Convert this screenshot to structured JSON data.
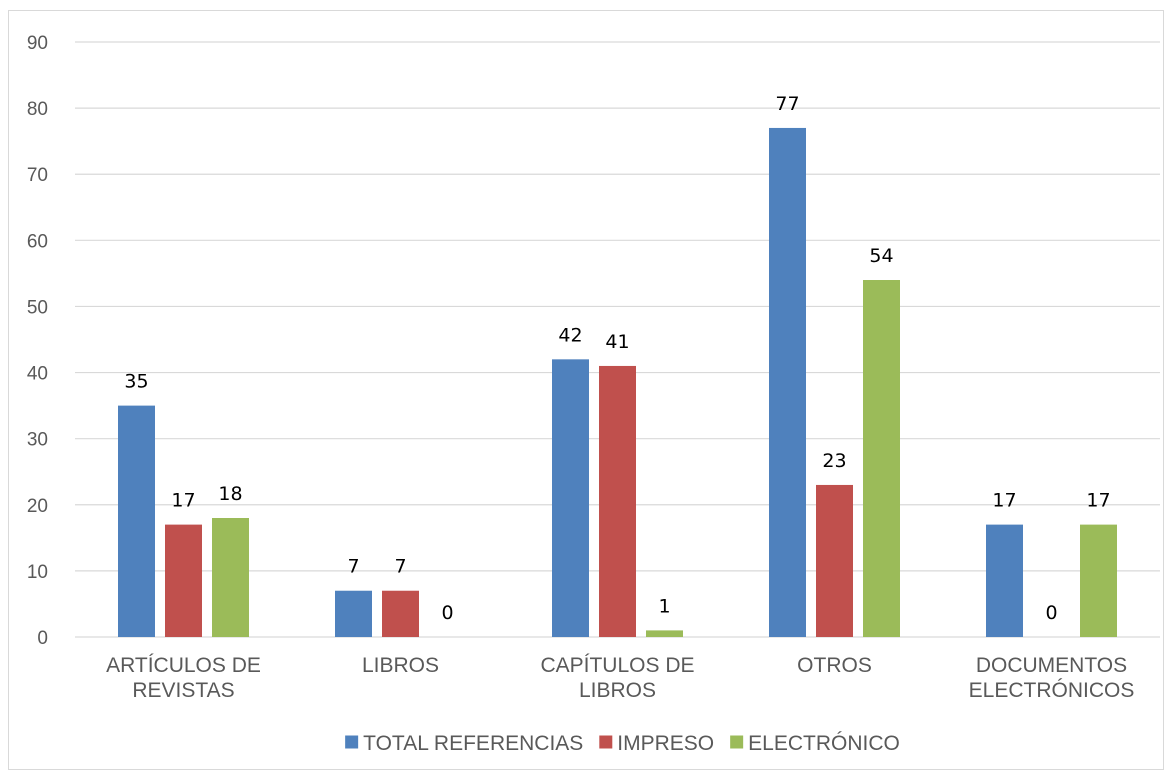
{
  "chart_data": {
    "type": "bar",
    "title": "",
    "xlabel": "",
    "ylabel": "",
    "ylim": [
      0,
      90
    ],
    "yticks": [
      0,
      10,
      20,
      30,
      40,
      50,
      60,
      70,
      80,
      90
    ],
    "grid": true,
    "legend_position": "bottom",
    "categories": [
      [
        "ARTÍCULOS DE",
        "REVISTAS"
      ],
      [
        "LIBROS"
      ],
      [
        "CAPÍTULOS DE",
        "LIBROS"
      ],
      [
        "OTROS"
      ],
      [
        "DOCUMENTOS",
        "ELECTRÓNICOS"
      ]
    ],
    "series": [
      {
        "name": "TOTAL REFERENCIAS",
        "color": "#4f81bd",
        "values": [
          35,
          7,
          42,
          77,
          17
        ]
      },
      {
        "name": "IMPRESO",
        "color": "#c0504d",
        "values": [
          17,
          7,
          41,
          23,
          0
        ]
      },
      {
        "name": "ELECTRÓNICO",
        "color": "#9bbb59",
        "values": [
          18,
          0,
          1,
          54,
          17
        ]
      }
    ]
  }
}
